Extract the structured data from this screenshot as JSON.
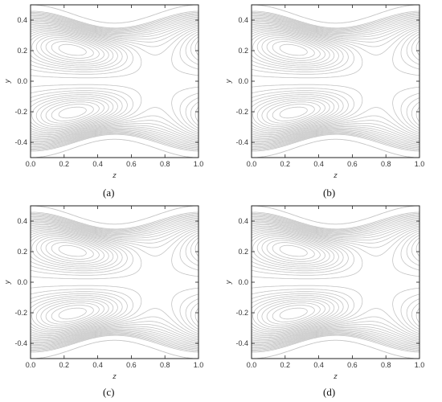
{
  "chart_data": [
    {
      "type": "contour",
      "panel": "a",
      "caption": "(a)",
      "xlabel": "z",
      "ylabel": "y",
      "xlim": [
        0.0,
        1.0
      ],
      "ylim": [
        -0.5,
        0.5
      ],
      "xticks": [
        "0.0",
        "0.2",
        "0.4",
        "0.6",
        "0.8",
        "1.0"
      ],
      "yticks": [
        "-0.4",
        "-0.2",
        "0.0",
        "0.2",
        "0.4"
      ],
      "wall_amplitude": 0.06,
      "wall_mean": 0.44,
      "trapped_bolus_centers": [
        {
          "z": 0.25,
          "y": 0.2
        },
        {
          "z": 0.25,
          "y": -0.2
        }
      ],
      "line_color": "#c4c4c4"
    },
    {
      "type": "contour",
      "panel": "b",
      "caption": "(b)",
      "xlabel": "z",
      "ylabel": "y",
      "xlim": [
        0.0,
        1.0
      ],
      "ylim": [
        -0.5,
        0.5
      ],
      "xticks": [
        "0.0",
        "0.2",
        "0.4",
        "0.6",
        "0.8",
        "1.0"
      ],
      "yticks": [
        "-0.4",
        "-0.2",
        "0.0",
        "0.2",
        "0.4"
      ],
      "wall_amplitude": 0.06,
      "wall_mean": 0.44,
      "trapped_bolus_centers": [
        {
          "z": 0.25,
          "y": 0.2
        },
        {
          "z": 0.25,
          "y": -0.2
        }
      ],
      "line_color": "#c4c4c4"
    },
    {
      "type": "contour",
      "panel": "c",
      "caption": "(c)",
      "xlabel": "z",
      "ylabel": "y",
      "xlim": [
        0.0,
        1.0
      ],
      "ylim": [
        -0.5,
        0.5
      ],
      "xticks": [
        "0.0",
        "0.2",
        "0.4",
        "0.6",
        "0.8",
        "1.0"
      ],
      "yticks": [
        "-0.4",
        "-0.2",
        "0.0",
        "0.2",
        "0.4"
      ],
      "wall_amplitude": 0.06,
      "wall_mean": 0.44,
      "trapped_bolus_centers": [
        {
          "z": 0.25,
          "y": 0.2
        },
        {
          "z": 0.25,
          "y": -0.2
        }
      ],
      "line_color": "#c4c4c4"
    },
    {
      "type": "contour",
      "panel": "d",
      "caption": "(d)",
      "xlabel": "z",
      "ylabel": "y",
      "xlim": [
        0.0,
        1.0
      ],
      "ylim": [
        -0.5,
        0.5
      ],
      "xticks": [
        "0.0",
        "0.2",
        "0.4",
        "0.6",
        "0.8",
        "1.0"
      ],
      "yticks": [
        "-0.4",
        "-0.2",
        "0.0",
        "0.2",
        "0.4"
      ],
      "wall_amplitude": 0.06,
      "wall_mean": 0.44,
      "trapped_bolus_centers": [
        {
          "z": 0.25,
          "y": 0.2
        },
        {
          "z": 0.25,
          "y": -0.2
        }
      ],
      "line_color": "#c4c4c4"
    }
  ]
}
